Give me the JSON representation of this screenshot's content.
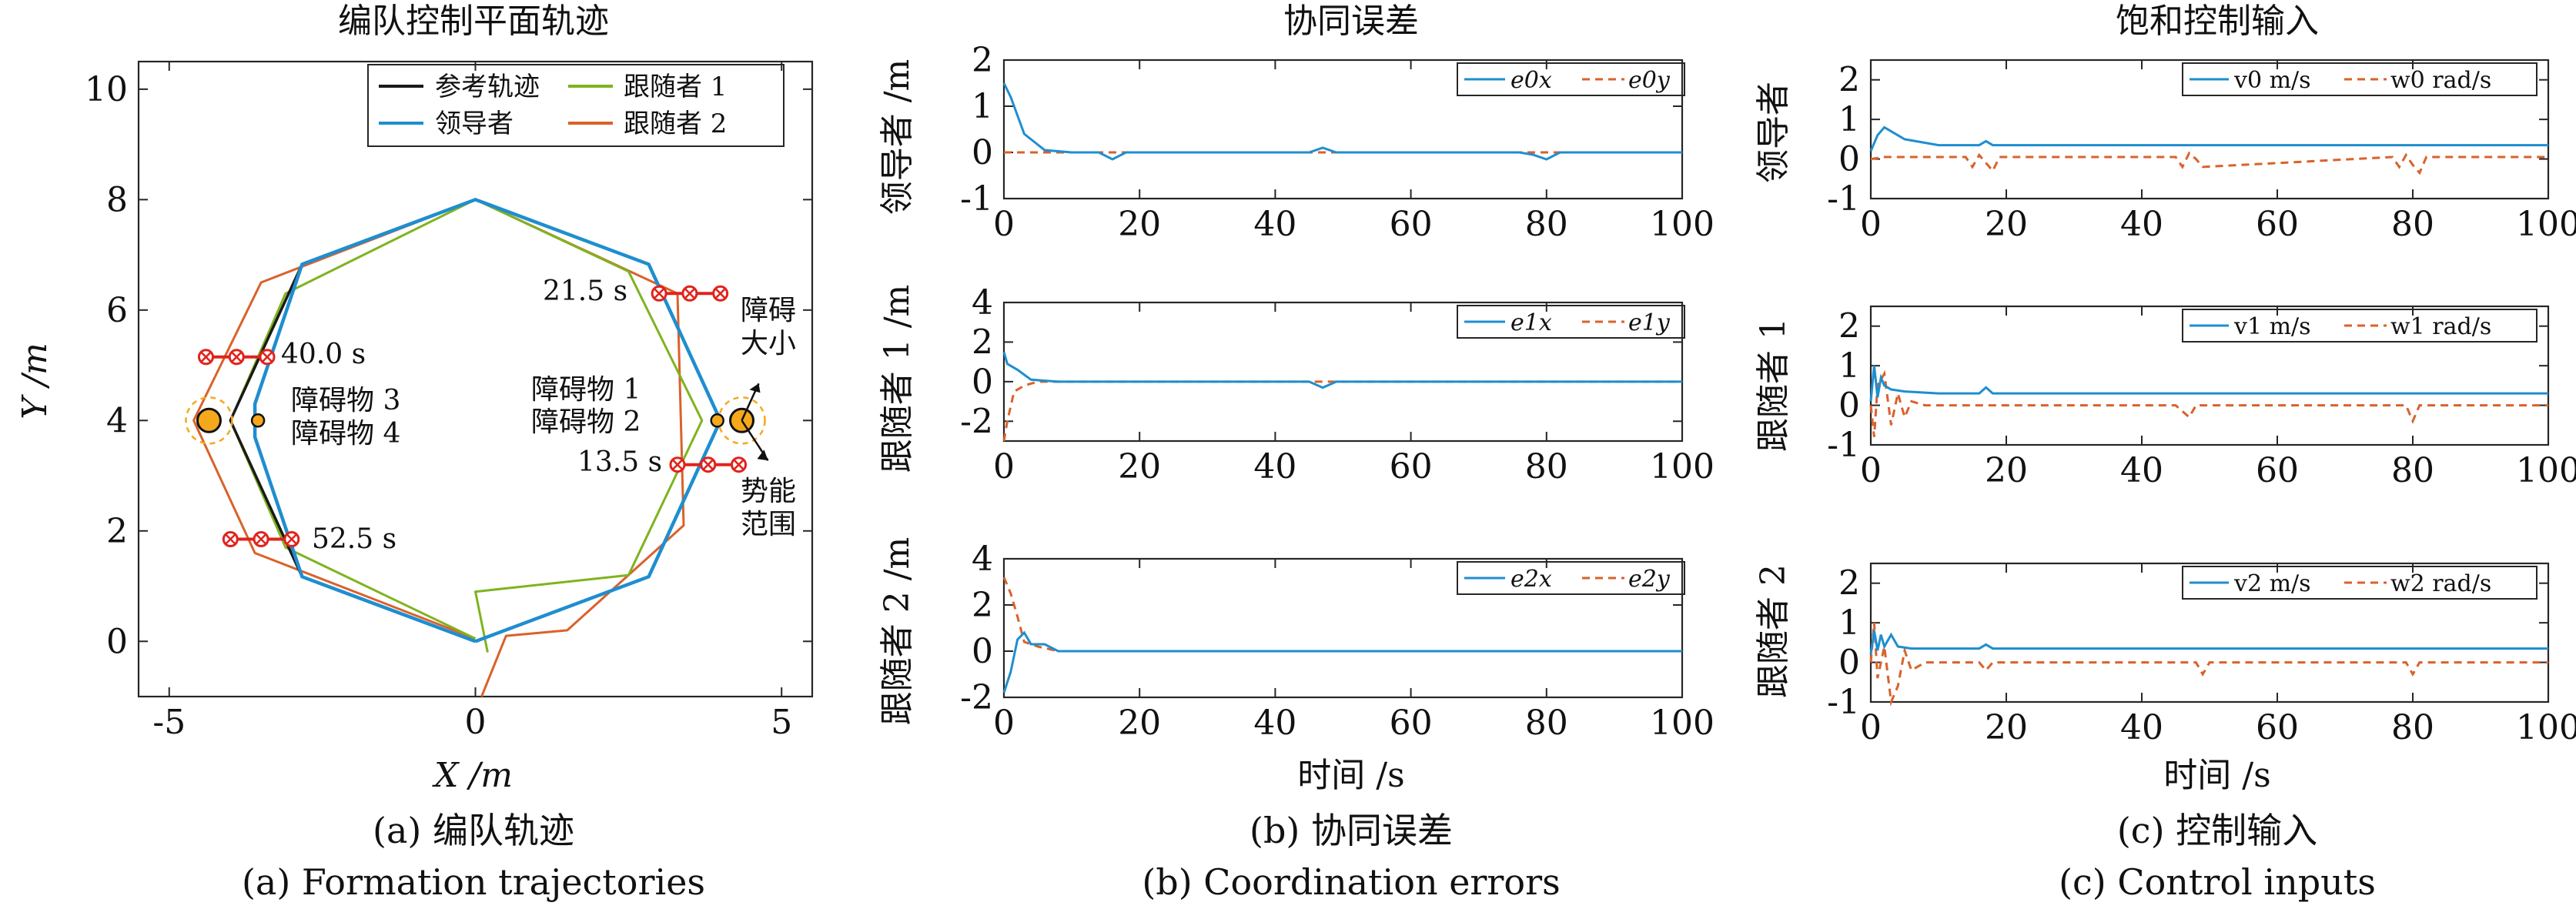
{
  "panels": {
    "a": {
      "title": "编队控制平面轨迹",
      "caption_zh": "(a) 编队轨迹",
      "caption_en": "(a) Formation trajectories",
      "xlabel": "X /m",
      "ylabel": "Y /m",
      "legend": [
        "参考轨迹",
        "领导者",
        "跟随者 1",
        "跟随者 2"
      ],
      "annotations": {
        "t215": "21.5 s",
        "t400": "40.0 s",
        "t135": "13.5 s",
        "t525": "52.5 s",
        "obs12a": "障碍物 1",
        "obs12b": "障碍物 2",
        "obs34a": "障碍物 3",
        "obs34b": "障碍物 4",
        "sizeA": "障碍",
        "sizeB": "大小",
        "rangeA": "势能",
        "rangeB": "范围"
      }
    },
    "b": {
      "title": "协同误差",
      "caption_zh": "(b) 协同误差",
      "caption_en": "(b) Coordination errors",
      "xlabel": "时间 /s",
      "ylabels": [
        "领导者 /m",
        "跟随者 1 /m",
        "跟随者 2 /m"
      ],
      "legend": [
        [
          "e0x",
          "e0y"
        ],
        [
          "e1x",
          "e1y"
        ],
        [
          "e2x",
          "e2y"
        ]
      ]
    },
    "c": {
      "title": "饱和控制输入",
      "caption_zh": "(c) 控制输入",
      "caption_en": "(c) Control inputs",
      "xlabel": "时间 /s",
      "ylabels": [
        "领导者",
        "跟随者 1",
        "跟随者 2"
      ],
      "legend": [
        [
          "v0 m/s",
          "w0 rad/s"
        ],
        [
          "v1 m/s",
          "w1 rad/s"
        ],
        [
          "v2 m/s",
          "w2 rad/s"
        ]
      ]
    }
  },
  "colors": {
    "reference": "#1a1a1a",
    "leader": "#1f8ecf",
    "follower1": "#7fb31f",
    "follower2": "#d9622b",
    "marker": "#e0231c",
    "obstacle": "#f5a81c"
  },
  "chart_data": [
    {
      "type": "line",
      "panel": "a",
      "xlim": [
        -5.5,
        5.5
      ],
      "ylim": [
        -1,
        10.5
      ],
      "xticks": [
        -5,
        0,
        5
      ],
      "yticks": [
        0,
        2,
        4,
        6,
        8,
        10
      ],
      "series": [
        {
          "name": "参考轨迹",
          "x": [
            0,
            2.83,
            4,
            2.83,
            0,
            -2.83,
            -4,
            -2.83,
            0
          ],
          "y": [
            0,
            1.17,
            4,
            6.83,
            8,
            6.83,
            4,
            1.17,
            0
          ]
        },
        {
          "name": "领导者",
          "x": [
            0,
            2.83,
            4,
            2.83,
            0,
            -2.83,
            -3.6,
            -3.6,
            -2.83,
            0
          ],
          "y": [
            0,
            1.17,
            4,
            6.83,
            8,
            6.83,
            4.3,
            3.7,
            1.17,
            0
          ]
        },
        {
          "name": "跟随者 1",
          "x": [
            0.2,
            0,
            2.5,
            3.7,
            2.5,
            0,
            -3.1,
            -4.0,
            -3.1,
            0
          ],
          "y": [
            -0.2,
            0.9,
            1.2,
            4,
            6.7,
            8,
            6.3,
            4,
            1.7,
            0.05
          ]
        },
        {
          "name": "跟随者 2",
          "x": [
            0.1,
            0.5,
            1.5,
            3.4,
            3.3,
            0,
            -3.5,
            -4.6,
            -3.6,
            0
          ],
          "y": [
            -1,
            0.1,
            0.2,
            2.1,
            6.3,
            8,
            6.5,
            4,
            1.6,
            0.05
          ]
        }
      ],
      "markers": [
        {
          "label": "21.5 s",
          "x": [
            3.0,
            3.5,
            4.0
          ],
          "y": 6.3
        },
        {
          "label": "40.0 s",
          "x": [
            -4.4,
            -3.9,
            -3.4
          ],
          "y": 5.15
        },
        {
          "label": "13.5 s",
          "x": [
            3.3,
            3.8,
            4.3
          ],
          "y": 3.2
        },
        {
          "label": "52.5 s",
          "x": [
            -4.0,
            -3.5,
            -3.0
          ],
          "y": 1.85
        }
      ],
      "obstacles": [
        {
          "x": 4.35,
          "y": 4.0,
          "size": "large"
        },
        {
          "x": 3.95,
          "y": 4.0,
          "size": "small"
        },
        {
          "x": -4.35,
          "y": 4.0,
          "size": "large"
        },
        {
          "x": -3.55,
          "y": 4.0,
          "size": "small"
        }
      ]
    },
    {
      "type": "line",
      "panel": "b",
      "row": 0,
      "xlim": [
        0,
        100
      ],
      "ylim": [
        -1,
        2
      ],
      "yticks": [
        -1,
        0,
        1,
        2
      ],
      "series": [
        {
          "name": "e0x",
          "x": [
            0,
            1,
            3,
            6,
            10,
            14,
            16,
            18,
            20,
            45,
            47,
            49,
            51,
            76,
            78,
            80,
            82,
            100
          ],
          "y": [
            1.5,
            1.2,
            0.4,
            0.05,
            0,
            0,
            -0.15,
            0,
            0,
            0,
            0.1,
            0,
            0,
            0,
            -0.05,
            -0.15,
            0,
            0
          ]
        },
        {
          "name": "e0y",
          "x": [
            0,
            100
          ],
          "y": [
            0,
            0
          ]
        }
      ]
    },
    {
      "type": "line",
      "panel": "b",
      "row": 1,
      "xlim": [
        0,
        100
      ],
      "ylim": [
        -3,
        4
      ],
      "yticks": [
        -2,
        0,
        2,
        4
      ],
      "series": [
        {
          "name": "e1x",
          "x": [
            0,
            0.5,
            2,
            4,
            8,
            45,
            47,
            49,
            100
          ],
          "y": [
            1.5,
            0.9,
            0.6,
            0.1,
            0,
            0,
            -0.3,
            0,
            0
          ]
        },
        {
          "name": "e1y",
          "x": [
            0,
            0.5,
            1.5,
            3,
            5,
            8,
            100
          ],
          "y": [
            -3,
            -2,
            -0.5,
            -0.2,
            0,
            0,
            0
          ]
        }
      ]
    },
    {
      "type": "line",
      "panel": "b",
      "row": 2,
      "xlim": [
        0,
        100
      ],
      "ylim": [
        -2,
        4
      ],
      "yticks": [
        -2,
        0,
        2,
        4
      ],
      "series": [
        {
          "name": "e2x",
          "x": [
            0,
            1,
            2,
            3,
            4,
            6,
            8,
            100
          ],
          "y": [
            -1.8,
            -0.9,
            0.5,
            0.8,
            0.3,
            0.3,
            0,
            0
          ]
        },
        {
          "name": "e2y",
          "x": [
            0,
            1,
            2,
            3,
            5,
            8,
            100
          ],
          "y": [
            3.2,
            2.5,
            1.5,
            0.4,
            0.2,
            0,
            0
          ]
        }
      ]
    },
    {
      "type": "line",
      "panel": "c",
      "row": 0,
      "xlim": [
        0,
        100
      ],
      "ylim": [
        -1,
        2.5
      ],
      "yticks": [
        -1,
        0,
        1,
        2
      ],
      "series": [
        {
          "name": "v0 m/s",
          "x": [
            0,
            1,
            2,
            5,
            10,
            16,
            17,
            18,
            100
          ],
          "y": [
            0.2,
            0.6,
            0.8,
            0.5,
            0.35,
            0.35,
            0.45,
            0.35,
            0.35
          ]
        },
        {
          "name": "w0 rad/s",
          "x": [
            0,
            2,
            5,
            14,
            15,
            16,
            17,
            18,
            19,
            45,
            46,
            47,
            48,
            49,
            77,
            78,
            79,
            80,
            81,
            82,
            100
          ],
          "y": [
            0,
            0.05,
            0.05,
            0.05,
            -0.2,
            0.1,
            -0.1,
            -0.3,
            0.05,
            0.05,
            -0.2,
            0.15,
            0,
            -0.2,
            0.05,
            -0.2,
            0.1,
            -0.15,
            -0.35,
            0.05,
            0.05
          ]
        }
      ]
    },
    {
      "type": "line",
      "panel": "c",
      "row": 1,
      "xlim": [
        0,
        100
      ],
      "ylim": [
        -1,
        2.5
      ],
      "yticks": [
        -1,
        0,
        1,
        2
      ],
      "series": [
        {
          "name": "v1 m/s",
          "x": [
            0,
            0.5,
            1,
            1.5,
            2,
            3,
            5,
            10,
            16,
            17,
            18,
            100
          ],
          "y": [
            0.1,
            1.0,
            0.2,
            0.7,
            0.5,
            0.4,
            0.35,
            0.3,
            0.3,
            0.45,
            0.3,
            0.3
          ]
        },
        {
          "name": "w1 rad/s",
          "x": [
            0,
            0.5,
            1,
            2,
            3,
            4,
            5,
            6,
            8,
            45,
            47,
            48,
            79,
            80,
            81,
            100
          ],
          "y": [
            0,
            -0.8,
            0.5,
            0.8,
            -0.5,
            0.3,
            -0.3,
            0.1,
            0,
            0,
            -0.3,
            0,
            0,
            -0.4,
            0,
            0
          ]
        }
      ]
    },
    {
      "type": "line",
      "panel": "c",
      "row": 2,
      "xlim": [
        0,
        100
      ],
      "ylim": [
        -1,
        2.5
      ],
      "yticks": [
        -1,
        0,
        1,
        2
      ],
      "series": [
        {
          "name": "v2 m/s",
          "x": [
            0,
            0.5,
            1,
            1.5,
            2,
            3,
            4,
            6,
            10,
            16,
            17,
            18,
            100
          ],
          "y": [
            0.2,
            0.8,
            0.3,
            0.7,
            0.4,
            0.7,
            0.4,
            0.35,
            0.35,
            0.35,
            0.45,
            0.35,
            0.35
          ]
        },
        {
          "name": "w2 rad/s",
          "x": [
            0,
            0.5,
            1,
            2,
            3,
            4,
            5,
            6,
            8,
            16,
            17,
            18,
            48,
            49,
            50,
            79,
            80,
            81,
            100
          ],
          "y": [
            0,
            1.0,
            -0.4,
            0.4,
            -1.0,
            -0.6,
            0.3,
            -0.2,
            0,
            0,
            -0.2,
            0,
            0,
            -0.3,
            0,
            0,
            -0.3,
            0,
            0
          ]
        }
      ]
    }
  ]
}
